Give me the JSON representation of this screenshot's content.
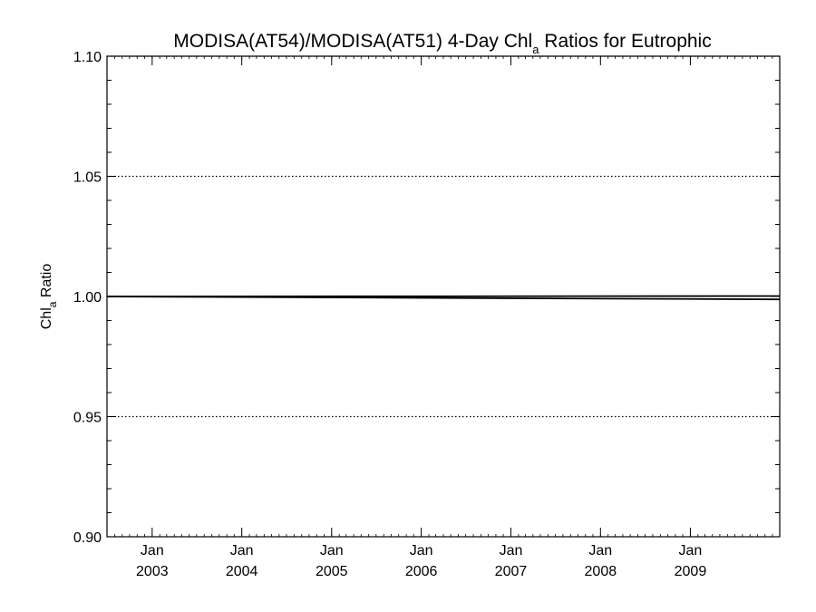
{
  "chart_data": {
    "type": "line",
    "title": {
      "main": "MODISA(AT54)/MODISA(AT51) 4-Day Chl",
      "subscript": "a",
      "suffix": " Ratios for Eutrophic"
    },
    "xlabel": "",
    "ylabel": {
      "main": "Chl",
      "subscript": "a",
      "suffix": " Ratio"
    },
    "ylim": [
      0.9,
      1.1
    ],
    "xlim": [
      "2002-07-01",
      "2009-12-31"
    ],
    "y_ticks": [
      {
        "value": 0.9,
        "label": "0.90"
      },
      {
        "value": 0.95,
        "label": "0.95"
      },
      {
        "value": 1.0,
        "label": "1.00"
      },
      {
        "value": 1.05,
        "label": "1.05"
      },
      {
        "value": 1.1,
        "label": "1.10"
      }
    ],
    "x_ticks": [
      {
        "date": "2003-01-01",
        "month": "Jan",
        "year": "2003"
      },
      {
        "date": "2004-01-01",
        "month": "Jan",
        "year": "2004"
      },
      {
        "date": "2005-01-01",
        "month": "Jan",
        "year": "2005"
      },
      {
        "date": "2006-01-01",
        "month": "Jan",
        "year": "2006"
      },
      {
        "date": "2007-01-01",
        "month": "Jan",
        "year": "2007"
      },
      {
        "date": "2008-01-01",
        "month": "Jan",
        "year": "2008"
      },
      {
        "date": "2009-01-01",
        "month": "Jan",
        "year": "2009"
      }
    ],
    "y_gridlines": [
      0.95,
      1.05,
      1.1
    ],
    "series": [
      {
        "color": "#000000",
        "x": [
          "2002-07-01",
          "2009-12-31"
        ],
        "y": [
          1.0,
          1.0002
        ]
      },
      {
        "color": "#000000",
        "x": [
          "2002-07-01",
          "2009-12-31"
        ],
        "y": [
          1.0,
          0.9988
        ]
      }
    ]
  }
}
